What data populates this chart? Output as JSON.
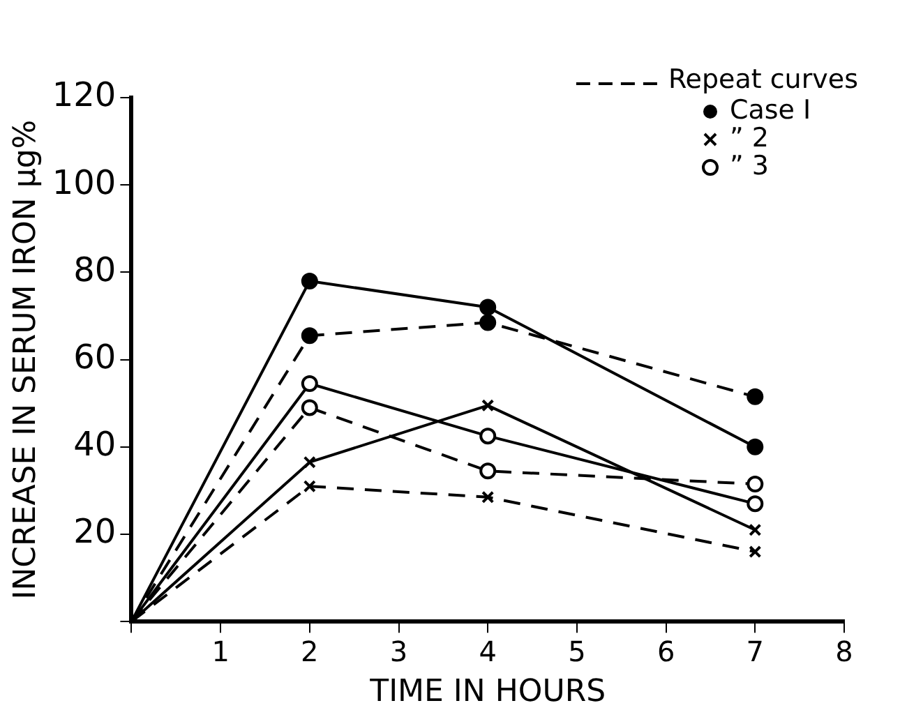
{
  "chart_data": {
    "type": "line",
    "xlabel": "TIME IN HOURS",
    "ylabel": "INCREASE IN SERUM IRON µg%",
    "legend_title": "Repeat curves",
    "legend": "top right",
    "grid": false,
    "x": [
      0,
      2,
      4,
      7
    ],
    "xlim": [
      0,
      8
    ],
    "xticks": [
      {
        "value": 0,
        "label": null
      },
      1,
      2,
      3,
      4,
      5,
      6,
      7,
      8
    ],
    "ylim": [
      0,
      120
    ],
    "yticks": [
      {
        "value": 0,
        "label": null
      },
      20,
      40,
      60,
      80,
      100,
      120
    ],
    "series": [
      {
        "name": "Case I",
        "color": "#000000",
        "marker": "circle",
        "line_style": "solid",
        "values": [
          0,
          78,
          72,
          40
        ]
      },
      {
        "color": "#000000",
        "marker": "circle",
        "line_style": "dashed",
        "values": [
          0,
          65.5,
          68.5,
          51.5
        ]
      },
      {
        "name": "” 2",
        "color": "#000000",
        "marker": "cross",
        "line_style": "solid",
        "values": [
          0,
          36.5,
          49.5,
          21
        ]
      },
      {
        "color": "#000000",
        "marker": "cross",
        "line_style": "dashed",
        "values": [
          0,
          31,
          28.5,
          16
        ]
      },
      {
        "name": "” 3",
        "color": "#000000",
        "marker": "circle",
        "line_style": "solid",
        "values": [
          0,
          54.5,
          42.5,
          27
        ]
      },
      {
        "color": "#000000",
        "marker": "circle",
        "line_style": "dashed",
        "values": [
          0,
          49,
          34.5,
          31.5
        ]
      }
    ]
  }
}
